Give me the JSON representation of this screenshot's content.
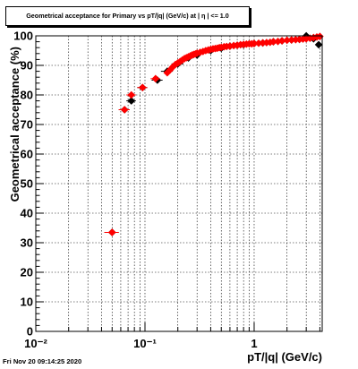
{
  "title": "Geometrical acceptance for Primary vs pT/|q| (GeV/c) at | η | <= 1.0",
  "footer": "Fri Nov 20 09:14:25 2020",
  "colors": {
    "series_black": "#000000",
    "series_red": "#ff0000",
    "grid": "#000000",
    "frame": "#000000"
  },
  "chart_data": {
    "type": "scatter",
    "title": "Geometrical acceptance for Primary vs pT/|q| (GeV/c) at | η | <= 1.0",
    "xlabel": "pT/|q| (GeV/c)",
    "ylabel": "Geometrical acceptance (%)",
    "xscale": "log",
    "xlim": [
      0.01,
      4.2
    ],
    "ylim": [
      0,
      100
    ],
    "grid": true,
    "legend": "none",
    "x_ticks": [
      {
        "value": 0.01,
        "label": "10⁻²"
      },
      {
        "value": 0.1,
        "label": "10⁻¹"
      },
      {
        "value": 1,
        "label": "1"
      }
    ],
    "y_ticks": [
      0,
      10,
      20,
      30,
      40,
      50,
      60,
      70,
      80,
      90,
      100
    ],
    "series": [
      {
        "color": "#000000",
        "x": [
          0.05,
          0.065,
          0.075,
          0.095,
          0.13,
          0.16,
          0.2,
          0.25,
          0.3,
          0.4,
          0.5,
          0.6,
          0.7,
          0.8,
          1.0,
          1.2,
          1.5,
          1.8,
          2.2,
          2.6,
          3.0,
          3.5,
          3.9
        ],
        "y": [
          33.5,
          75,
          78,
          82.5,
          85,
          88,
          90.5,
          92.5,
          93.5,
          95,
          95.8,
          96.5,
          96.8,
          97,
          97.4,
          97.6,
          98,
          98.3,
          98.6,
          98.8,
          100,
          99,
          97
        ],
        "xerr": [
          0.0075,
          0.0075,
          0.0075,
          0.01,
          0.015,
          0.02,
          0.025,
          0.025,
          0.025,
          0.05,
          0.05,
          0.05,
          0.05,
          0.05,
          0.1,
          0.1,
          0.15,
          0.15,
          0.2,
          0.2,
          0.25,
          0.25,
          0.25
        ]
      },
      {
        "color": "#ff0000",
        "x": [
          0.05,
          0.065,
          0.075,
          0.095,
          0.125,
          0.16,
          0.17,
          0.18,
          0.19,
          0.2,
          0.21,
          0.22,
          0.23,
          0.24,
          0.25,
          0.26,
          0.27,
          0.28,
          0.29,
          0.3,
          0.32,
          0.34,
          0.36,
          0.38,
          0.4,
          0.42,
          0.44,
          0.46,
          0.48,
          0.5,
          0.53,
          0.56,
          0.6,
          0.65,
          0.7,
          0.75,
          0.8,
          0.85,
          0.9,
          0.95,
          1.0,
          1.1,
          1.2,
          1.3,
          1.4,
          1.5,
          1.65,
          1.8,
          2.0,
          2.2,
          2.4,
          2.6,
          2.8,
          3.0,
          3.25,
          3.5,
          3.75,
          4.0
        ],
        "y": [
          33.5,
          75,
          80,
          82.5,
          85.5,
          87.5,
          88.5,
          89.5,
          90.3,
          90.8,
          91.3,
          91.8,
          92.3,
          92.6,
          92.9,
          93.2,
          93.5,
          93.7,
          93.9,
          94.1,
          94.4,
          94.7,
          95,
          95.2,
          95.4,
          95.6,
          95.7,
          95.8,
          96,
          96.1,
          96.3,
          96.4,
          96.5,
          96.7,
          96.8,
          97,
          97.1,
          97.2,
          97.3,
          97.3,
          97.4,
          97.5,
          97.6,
          97.7,
          97.8,
          98,
          98.1,
          98.3,
          98.5,
          98.6,
          98.7,
          98.8,
          98.9,
          99,
          99.2,
          99.4,
          99.6,
          99.8
        ],
        "xerr": [
          0.0075,
          0.0075,
          0.0075,
          0.01,
          0.0125,
          0.005,
          0.005,
          0.005,
          0.005,
          0.005,
          0.005,
          0.005,
          0.005,
          0.005,
          0.005,
          0.005,
          0.005,
          0.005,
          0.005,
          0.005,
          0.01,
          0.01,
          0.01,
          0.01,
          0.01,
          0.01,
          0.01,
          0.01,
          0.01,
          0.01,
          0.015,
          0.015,
          0.02,
          0.025,
          0.025,
          0.025,
          0.025,
          0.025,
          0.025,
          0.025,
          0.025,
          0.05,
          0.05,
          0.05,
          0.05,
          0.05,
          0.075,
          0.075,
          0.1,
          0.1,
          0.1,
          0.1,
          0.1,
          0.1,
          0.125,
          0.125,
          0.125,
          0.125
        ]
      }
    ]
  }
}
